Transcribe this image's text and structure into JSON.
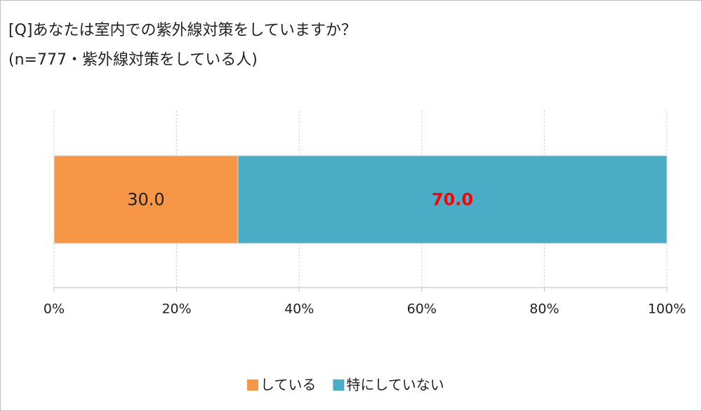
{
  "chart_data": {
    "type": "stacked-bar-horizontal",
    "title": "[Q]あなたは室内での紫外線対策をしていますか？",
    "subtitle": "(n=777・紫外線対策をしている人)",
    "categories": [
      null
    ],
    "series": [
      {
        "name": "している",
        "color": "#f79646",
        "values": [
          30.0
        ],
        "value_labels": [
          "30.0"
        ],
        "label_color": "#222222",
        "label_weight": "normal"
      },
      {
        "name": "特にしていない",
        "color": "#4bacc6",
        "values": [
          70.0
        ],
        "value_labels": [
          "70.0"
        ],
        "label_color": "#ff0000",
        "label_weight": "bold"
      }
    ],
    "xlim": [
      0,
      100
    ],
    "xticks": [
      {
        "value": 0,
        "label": "0%"
      },
      {
        "value": 20,
        "label": "20%"
      },
      {
        "value": 40,
        "label": "40%"
      },
      {
        "value": 60,
        "label": "60%"
      },
      {
        "value": 80,
        "label": "80%"
      },
      {
        "value": 100,
        "label": "100%"
      }
    ],
    "grid": true,
    "legend": "bottom"
  }
}
